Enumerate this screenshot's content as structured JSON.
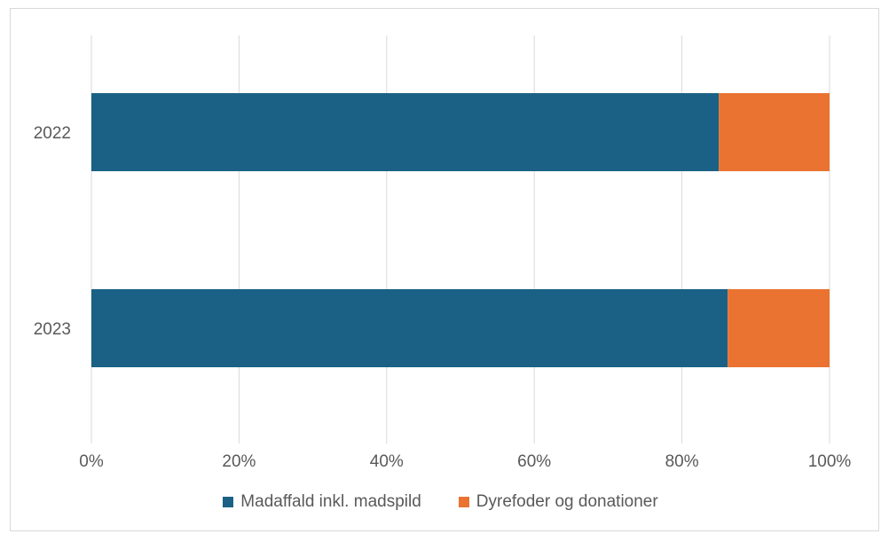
{
  "chart_data": {
    "type": "bar",
    "orientation": "horizontal",
    "stacked": true,
    "percent_stacked": true,
    "categories": [
      "2022",
      "2023"
    ],
    "series": [
      {
        "name": "Madaffald inkl. madspild",
        "color": "#1a6185",
        "values": [
          85,
          86.2
        ]
      },
      {
        "name": "Dyrefoder og donationer",
        "color": "#ea7331",
        "values": [
          15,
          13.8
        ]
      }
    ],
    "x_ticks": [
      "0%",
      "20%",
      "40%",
      "60%",
      "80%",
      "100%"
    ],
    "xlim": [
      0,
      100
    ],
    "grid": "vertical",
    "gridline_color": "#d9d9d9",
    "legend_position": "bottom"
  }
}
